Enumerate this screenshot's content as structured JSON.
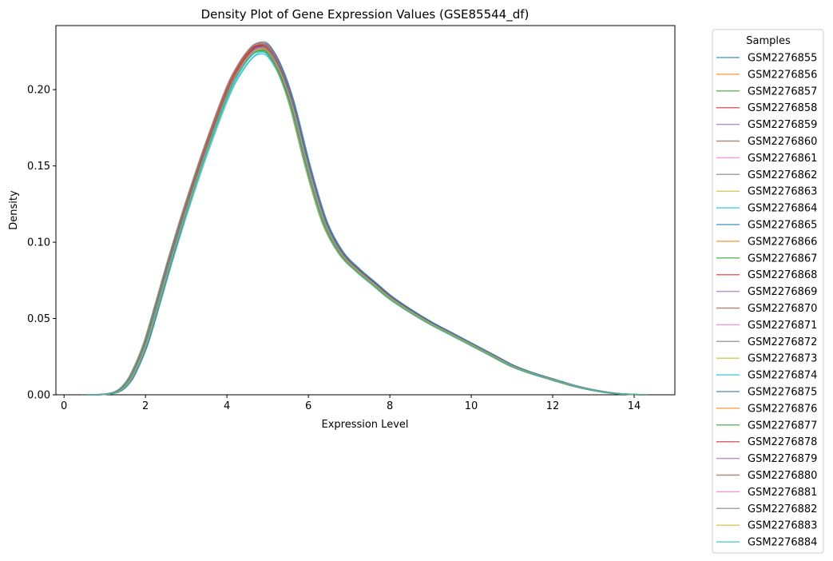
{
  "chart_data": {
    "type": "line",
    "title": "Density Plot of Gene Expression Values (GSE85544_df)",
    "xlabel": "Expression Level",
    "ylabel": "Density",
    "xlim": [
      -0.2,
      15.0
    ],
    "ylim": [
      0.0,
      0.242
    ],
    "xticks": [
      0,
      2,
      4,
      6,
      8,
      10,
      12,
      14
    ],
    "xtick_labels": [
      "0",
      "2",
      "4",
      "6",
      "8",
      "10",
      "12",
      "14"
    ],
    "yticks": [
      0.0,
      0.05,
      0.1,
      0.15,
      0.2
    ],
    "ytick_labels": [
      "0.00",
      "0.05",
      "0.10",
      "0.15",
      "0.20"
    ],
    "grid": false,
    "legend": {
      "title": "Samples",
      "placement": "outside-right"
    },
    "base_curve": {
      "x": [
        0.5,
        1.0,
        1.3,
        1.5,
        1.7,
        2.0,
        2.3,
        2.6,
        3.0,
        3.5,
        4.0,
        4.3,
        4.6,
        4.8,
        5.0,
        5.3,
        5.6,
        6.0,
        6.4,
        6.8,
        7.2,
        7.6,
        8.0,
        8.5,
        9.0,
        9.5,
        10.0,
        10.5,
        11.0,
        11.5,
        12.0,
        12.5,
        13.0,
        13.5,
        14.0,
        14.3
      ],
      "y": [
        0.0,
        0.0003,
        0.002,
        0.006,
        0.014,
        0.033,
        0.06,
        0.088,
        0.123,
        0.163,
        0.199,
        0.215,
        0.226,
        0.229,
        0.227,
        0.213,
        0.19,
        0.148,
        0.113,
        0.093,
        0.082,
        0.073,
        0.064,
        0.055,
        0.047,
        0.04,
        0.033,
        0.026,
        0.019,
        0.014,
        0.01,
        0.006,
        0.003,
        0.001,
        0.0002,
        0.0
      ]
    },
    "series": [
      {
        "name": "GSM2276855",
        "color": "#1f77b4",
        "dx": 0.03,
        "scale": 1.0
      },
      {
        "name": "GSM2276856",
        "color": "#ff7f0e",
        "dx": 0.0,
        "scale": 0.993
      },
      {
        "name": "GSM2276857",
        "color": "#2ca02c",
        "dx": -0.06,
        "scale": 0.997
      },
      {
        "name": "GSM2276858",
        "color": "#d62728",
        "dx": 0.05,
        "scale": 1.003
      },
      {
        "name": "GSM2276859",
        "color": "#9467bd",
        "dx": -0.02,
        "scale": 0.99
      },
      {
        "name": "GSM2276860",
        "color": "#8c564b",
        "dx": 0.02,
        "scale": 1.0
      },
      {
        "name": "GSM2276861",
        "color": "#e377c2",
        "dx": -0.04,
        "scale": 1.005
      },
      {
        "name": "GSM2276862",
        "color": "#7f7f7f",
        "dx": 0.04,
        "scale": 1.01
      },
      {
        "name": "GSM2276863",
        "color": "#bcbd22",
        "dx": -0.01,
        "scale": 0.983
      },
      {
        "name": "GSM2276864",
        "color": "#17becf",
        "dx": 0.01,
        "scale": 0.975
      },
      {
        "name": "GSM2276865",
        "color": "#1f77b4",
        "dx": 0.06,
        "scale": 1.006
      },
      {
        "name": "GSM2276866",
        "color": "#ff7f0e",
        "dx": -0.03,
        "scale": 0.996
      },
      {
        "name": "GSM2276867",
        "color": "#2ca02c",
        "dx": 0.0,
        "scale": 0.985
      },
      {
        "name": "GSM2276868",
        "color": "#d62728",
        "dx": 0.02,
        "scale": 1.002
      },
      {
        "name": "GSM2276869",
        "color": "#9467bd",
        "dx": -0.05,
        "scale": 0.994
      },
      {
        "name": "GSM2276870",
        "color": "#8c564b",
        "dx": 0.03,
        "scale": 0.99
      },
      {
        "name": "GSM2276871",
        "color": "#e377c2",
        "dx": -0.02,
        "scale": 1.004
      },
      {
        "name": "GSM2276872",
        "color": "#7f7f7f",
        "dx": 0.01,
        "scale": 1.0
      },
      {
        "name": "GSM2276873",
        "color": "#bcbd22",
        "dx": -0.04,
        "scale": 0.988
      },
      {
        "name": "GSM2276874",
        "color": "#17becf",
        "dx": 0.05,
        "scale": 0.98
      },
      {
        "name": "GSM2276875",
        "color": "#1f77b4",
        "dx": 0.04,
        "scale": 0.997
      },
      {
        "name": "GSM2276876",
        "color": "#ff7f0e",
        "dx": -0.01,
        "scale": 1.002
      },
      {
        "name": "GSM2276877",
        "color": "#2ca02c",
        "dx": 0.02,
        "scale": 0.986
      },
      {
        "name": "GSM2276878",
        "color": "#d62728",
        "dx": 0.0,
        "scale": 0.999
      },
      {
        "name": "GSM2276879",
        "color": "#9467bd",
        "dx": 0.03,
        "scale": 0.995
      },
      {
        "name": "GSM2276880",
        "color": "#8c564b",
        "dx": -0.03,
        "scale": 1.001
      },
      {
        "name": "GSM2276881",
        "color": "#e377c2",
        "dx": 0.01,
        "scale": 0.992
      },
      {
        "name": "GSM2276882",
        "color": "#7f7f7f",
        "dx": -0.02,
        "scale": 1.007
      },
      {
        "name": "GSM2276883",
        "color": "#bcbd22",
        "dx": 0.02,
        "scale": 0.989
      },
      {
        "name": "GSM2276884",
        "color": "#17becf",
        "dx": -0.01,
        "scale": 0.982
      }
    ]
  }
}
